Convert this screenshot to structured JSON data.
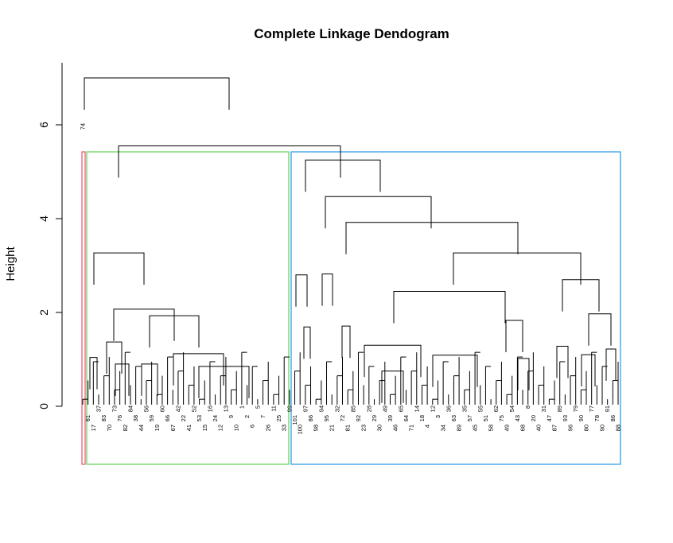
{
  "chart_data": {
    "type": "dendrogram",
    "title": "Complete Linkage Dendogram",
    "xlabel": "",
    "ylabel": "Height",
    "ylim": [
      0,
      7
    ],
    "y_ticks": [
      0,
      2,
      4,
      6
    ],
    "leaves": [
      "74",
      "61",
      "17",
      "37",
      "83",
      "70",
      "73",
      "76",
      "82",
      "84",
      "38",
      "44",
      "56",
      "59",
      "19",
      "60",
      "66",
      "67",
      "42",
      "22",
      "41",
      "52",
      "53",
      "15",
      "16",
      "24",
      "12",
      "13",
      "9",
      "10",
      "1",
      "2",
      "6",
      "5",
      "7",
      "26",
      "11",
      "25",
      "33",
      "99",
      "101",
      "100",
      "97",
      "86",
      "98",
      "94",
      "95",
      "21",
      "32",
      "72",
      "81",
      "85",
      "92",
      "23",
      "28",
      "29",
      "30",
      "49",
      "39",
      "46",
      "65",
      "64",
      "71",
      "14",
      "18",
      "4",
      "12",
      "3",
      "34",
      "36",
      "63",
      "89",
      "35",
      "57",
      "45",
      "55",
      "51",
      "58",
      "62",
      "75",
      "49",
      "54",
      "43",
      "68",
      "8",
      "20",
      "40",
      "31",
      "47",
      "87",
      "89",
      "93",
      "96",
      "79",
      "90",
      "80",
      "77",
      "78",
      "90",
      "91",
      "86",
      "88"
    ],
    "cut_boxes": [
      {
        "color": "#DF536B"
      },
      {
        "color": "#61D04F"
      },
      {
        "color": "#2297E6"
      }
    ],
    "merges": [
      {
        "x": [
          106,
          288
        ],
        "height": 7.0
      },
      {
        "x": [
          149,
          428
        ],
        "height": 5.55
      },
      {
        "x": [
          118,
          181
        ],
        "height": 3.27
      },
      {
        "x": [
          143,
          219
        ],
        "height": 2.07
      },
      {
        "x": [
          188,
          250
        ],
        "height": 1.93
      },
      {
        "x": [
          218,
          281
        ],
        "height": 1.12
      },
      {
        "x": [
          250,
          313
        ],
        "height": 0.85
      },
      {
        "x": [
          134,
          153
        ],
        "height": 1.37
      },
      {
        "x": [
          145,
          162
        ],
        "height": 0.9
      },
      {
        "x": [
          178,
          198
        ],
        "height": 0.9
      },
      {
        "x": [
          113,
          122
        ],
        "height": 1.04
      },
      {
        "x": [
          384,
          478
        ],
        "height": 5.25
      },
      {
        "x": [
          409,
          542
        ],
        "height": 4.47
      },
      {
        "x": [
          435,
          651
        ],
        "height": 3.92
      },
      {
        "x": [
          570,
          730
        ],
        "height": 3.27
      },
      {
        "x": [
          372,
          386
        ],
        "height": 2.8
      },
      {
        "x": [
          405,
          418
        ],
        "height": 2.82
      },
      {
        "x": [
          495,
          635
        ],
        "height": 2.45
      },
      {
        "x": [
          707,
          753
        ],
        "height": 2.7
      },
      {
        "x": [
          430,
          440
        ],
        "height": 1.71
      },
      {
        "x": [
          382,
          390
        ],
        "height": 1.69
      },
      {
        "x": [
          458,
          529
        ],
        "height": 1.3
      },
      {
        "x": [
          636,
          657
        ],
        "height": 1.83
      },
      {
        "x": [
          740,
          768
        ],
        "height": 1.97
      },
      {
        "x": [
          700,
          714
        ],
        "height": 1.28
      },
      {
        "x": [
          544,
          600
        ],
        "height": 1.09
      },
      {
        "x": [
          651,
          665
        ],
        "height": 1.02
      },
      {
        "x": [
          480,
          507
        ],
        "height": 0.75
      },
      {
        "x": [
          762,
          774
        ],
        "height": 1.22
      },
      {
        "x": [
          731,
          748
        ],
        "height": 1.1
      }
    ]
  }
}
